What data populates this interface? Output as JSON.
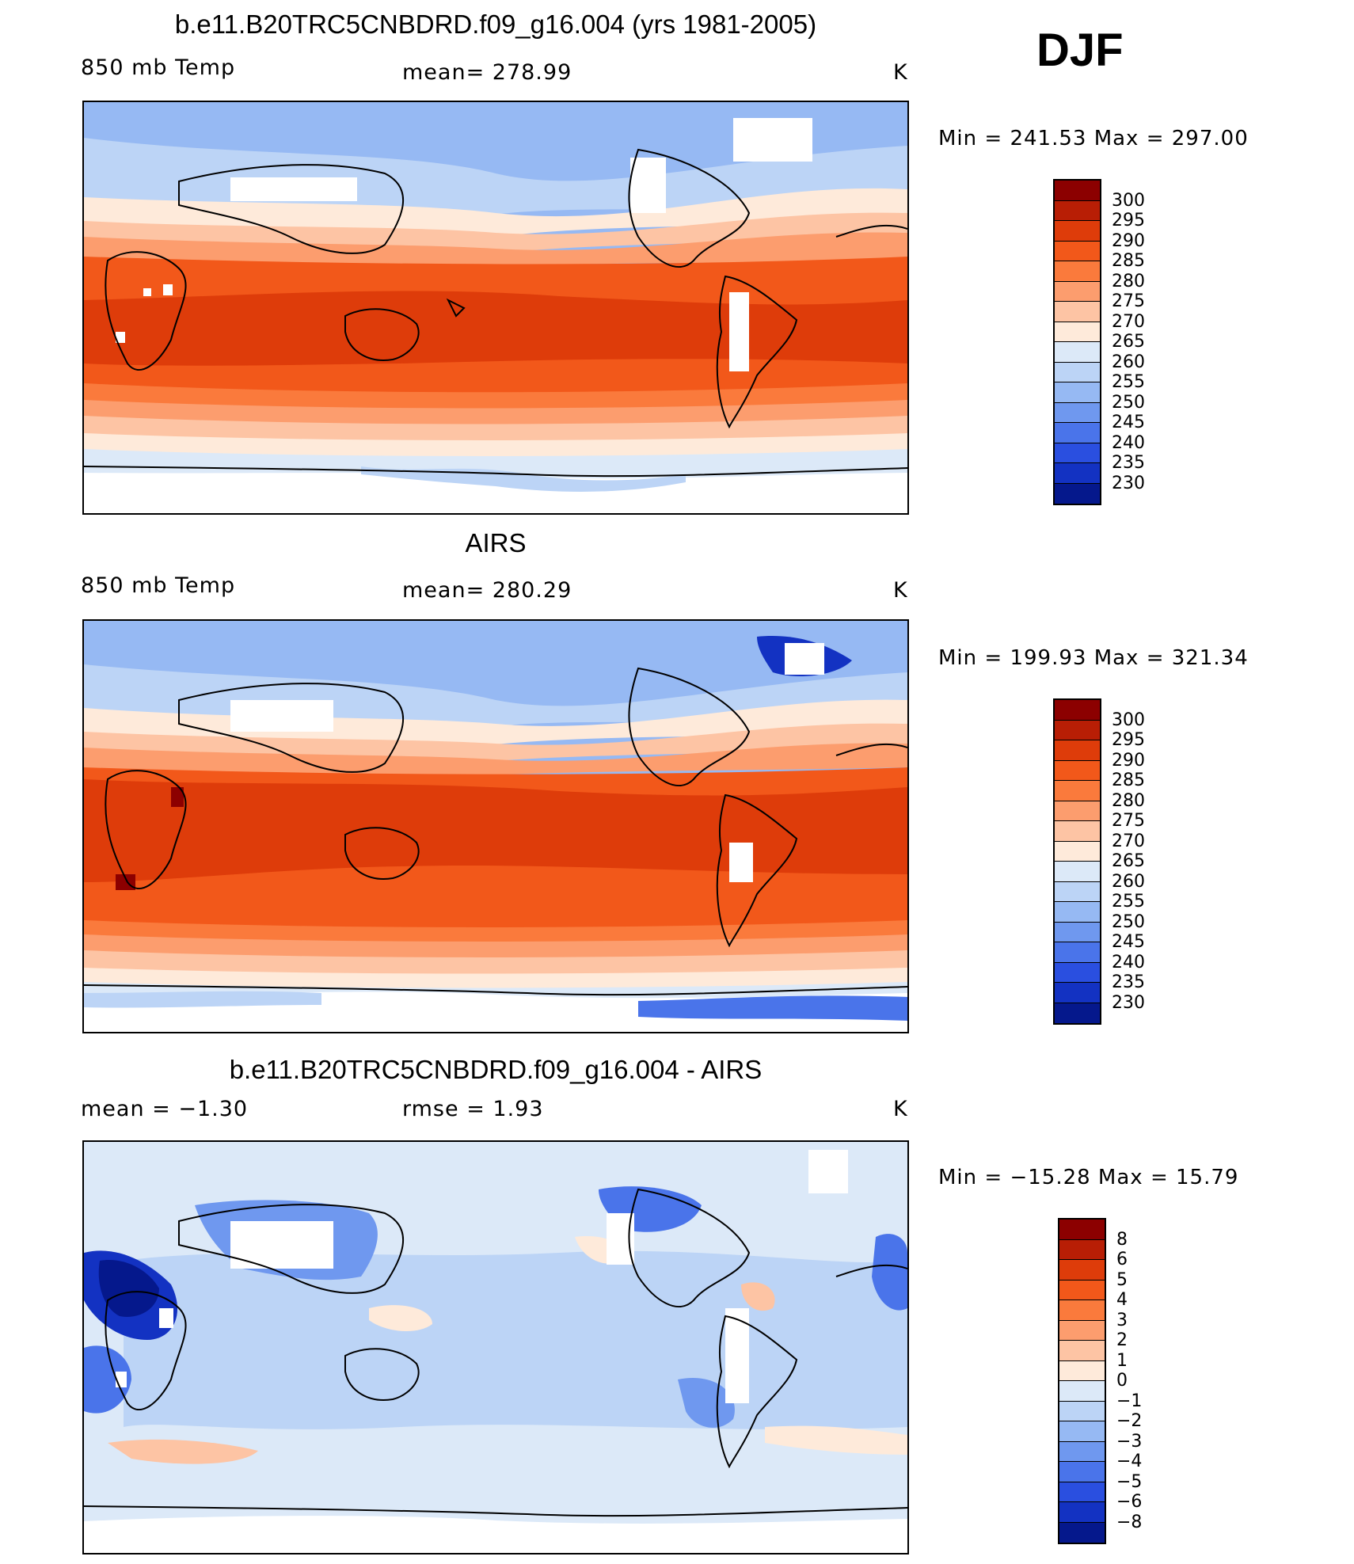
{
  "season": "DJF",
  "panels": [
    {
      "title": "b.e11.B20TRC5CNBDRD.f09_g16.004 (yrs 1981-2005)",
      "left_label": "850 mb Temp",
      "center_label": "mean=  278.99",
      "units": "K",
      "minmax": "Min  =  241.53  Max  =  297.00",
      "colorbar": {
        "labels": [
          "300",
          "295",
          "290",
          "285",
          "280",
          "275",
          "270",
          "265",
          "260",
          "255",
          "250",
          "245",
          "240",
          "235",
          "230"
        ],
        "colors": [
          "#8c0000",
          "#b81e05",
          "#de3c0a",
          "#f2581a",
          "#fa7a3c",
          "#fc9d6e",
          "#fdc4a4",
          "#feeada",
          "#dce9f8",
          "#bcd4f6",
          "#96b9f3",
          "#6f98ef",
          "#4a74ea",
          "#2a4fe0",
          "#1332c2",
          "#05188c"
        ]
      }
    },
    {
      "title": "AIRS",
      "left_label": "850 mb Temp",
      "center_label": "mean=  280.29",
      "units": "K",
      "minmax": "Min  =  199.93  Max  =  321.34",
      "colorbar": {
        "labels": [
          "300",
          "295",
          "290",
          "285",
          "280",
          "275",
          "270",
          "265",
          "260",
          "255",
          "250",
          "245",
          "240",
          "235",
          "230"
        ],
        "colors": [
          "#8c0000",
          "#b81e05",
          "#de3c0a",
          "#f2581a",
          "#fa7a3c",
          "#fc9d6e",
          "#fdc4a4",
          "#feeada",
          "#dce9f8",
          "#bcd4f6",
          "#96b9f3",
          "#6f98ef",
          "#4a74ea",
          "#2a4fe0",
          "#1332c2",
          "#05188c"
        ]
      }
    },
    {
      "title": "b.e11.B20TRC5CNBDRD.f09_g16.004 - AIRS",
      "left_label": "mean  =    −1.30",
      "center_label": "rmse  =     1.93",
      "units": "K",
      "minmax": "Min  =  −15.28  Max  =    15.79",
      "colorbar": {
        "labels": [
          "8",
          "6",
          "5",
          "4",
          "3",
          "2",
          "1",
          "0",
          "−1",
          "−2",
          "−3",
          "−4",
          "−5",
          "−6",
          "−8"
        ],
        "colors": [
          "#8c0000",
          "#b81e05",
          "#de3c0a",
          "#f2581a",
          "#fa7a3c",
          "#fc9d6e",
          "#fdc4a4",
          "#feeada",
          "#dce9f8",
          "#bcd4f6",
          "#96b9f3",
          "#6f98ef",
          "#4a74ea",
          "#2a4fe0",
          "#1332c2",
          "#05188c"
        ]
      }
    }
  ]
}
